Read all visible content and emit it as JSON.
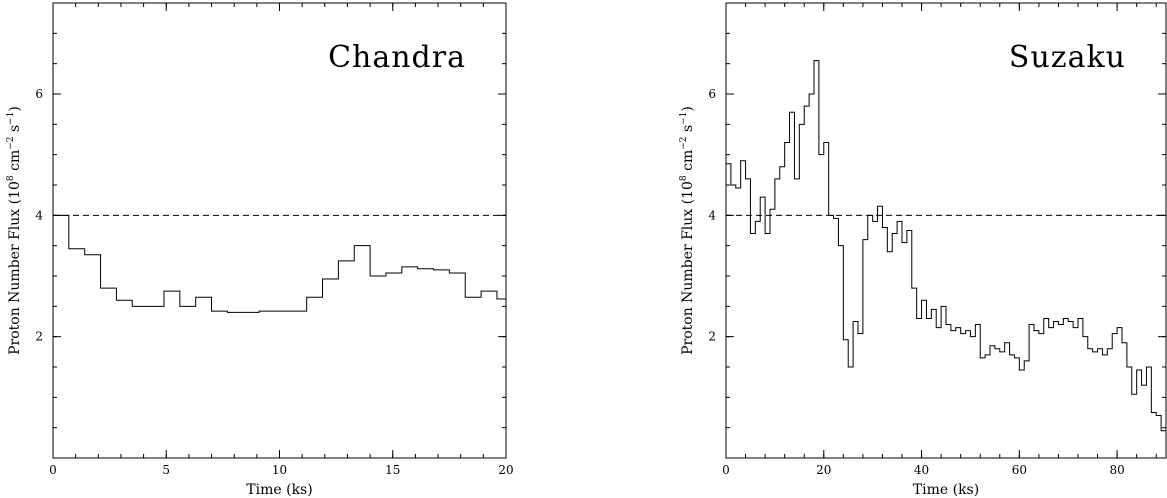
{
  "chart_data": [
    {
      "type": "line",
      "step": true,
      "title": "Chandra",
      "xlabel": "Time (ks)",
      "ylabel": "Proton Number Flux (10",
      "ylabel_exp1": "8",
      "ylabel_mid": " cm",
      "ylabel_exp2": "−2",
      "ylabel_mid2": " s",
      "ylabel_exp3": "−1",
      "ylabel_end": ")",
      "xlim": [
        0,
        20
      ],
      "ylim": [
        0,
        7.5
      ],
      "xticks": [
        0,
        5,
        10,
        15,
        20
      ],
      "xtick_labels": [
        "0",
        "5",
        "10",
        "15",
        "20"
      ],
      "yticks": [
        2,
        4,
        6
      ],
      "ytick_labels": [
        "2",
        "4",
        "6"
      ],
      "x_minor_step": 1,
      "y_minor_step": 0.5,
      "threshold": 4,
      "series": [
        {
          "x": [
            0,
            0.7,
            1.4,
            2.1,
            2.8,
            3.5,
            4.2,
            4.9,
            5.6,
            6.3,
            7.0,
            7.7,
            8.4,
            9.1,
            9.8,
            10.5,
            11.2,
            11.9,
            12.6,
            13.3,
            14.0,
            14.7,
            15.4,
            16.1,
            16.8,
            17.5,
            18.2,
            18.9,
            19.6,
            20
          ],
          "y": [
            4.0,
            3.45,
            3.35,
            2.8,
            2.6,
            2.5,
            2.5,
            2.75,
            2.5,
            2.65,
            2.42,
            2.4,
            2.4,
            2.42,
            2.42,
            2.42,
            2.65,
            2.95,
            3.25,
            3.5,
            3.0,
            3.05,
            3.15,
            3.12,
            3.1,
            3.05,
            2.65,
            2.75,
            2.62,
            2.62
          ]
        }
      ]
    },
    {
      "type": "line",
      "step": true,
      "title": "Suzaku",
      "xlabel": "Time (ks)",
      "ylabel": "Proton Number Flux (10",
      "ylabel_exp1": "8",
      "ylabel_mid": " cm",
      "ylabel_exp2": "−2",
      "ylabel_mid2": " s",
      "ylabel_exp3": "−1",
      "ylabel_end": ")",
      "xlim": [
        0,
        90
      ],
      "ylim": [
        0,
        7.5
      ],
      "xticks": [
        0,
        20,
        40,
        60,
        80
      ],
      "xtick_labels": [
        "0",
        "20",
        "40",
        "60",
        "80"
      ],
      "yticks": [
        2,
        4,
        6
      ],
      "ytick_labels": [
        "2",
        "4",
        "6"
      ],
      "x_minor_step": 4,
      "y_minor_step": 0.5,
      "threshold": 4,
      "series": [
        {
          "x": [
            0,
            1,
            2,
            3,
            4,
            5,
            6,
            7,
            8,
            9,
            10,
            11,
            12,
            13,
            14,
            15,
            16,
            17,
            18,
            19,
            20,
            21,
            22,
            23,
            24,
            25,
            26,
            27,
            28,
            29,
            30,
            31,
            32,
            33,
            34,
            35,
            36,
            37,
            38,
            39,
            40,
            41,
            42,
            43,
            44,
            45,
            46,
            47,
            48,
            49,
            50,
            51,
            52,
            53,
            54,
            55,
            56,
            57,
            58,
            59,
            60,
            61,
            62,
            63,
            64,
            65,
            66,
            67,
            68,
            69,
            70,
            71,
            72,
            73,
            74,
            75,
            76,
            77,
            78,
            79,
            80,
            81,
            82,
            83,
            84,
            85,
            86,
            87,
            88,
            89
          ],
          "y": [
            4.85,
            4.5,
            4.45,
            4.9,
            4.6,
            3.7,
            3.9,
            4.3,
            3.7,
            4.1,
            4.6,
            4.8,
            5.2,
            5.7,
            4.6,
            5.5,
            5.8,
            6.0,
            6.55,
            5.0,
            5.2,
            4.0,
            3.95,
            3.5,
            1.95,
            1.5,
            2.25,
            2.05,
            3.6,
            4.0,
            3.9,
            4.15,
            3.8,
            3.4,
            3.7,
            3.9,
            3.55,
            3.75,
            2.8,
            2.3,
            2.6,
            2.3,
            2.45,
            2.15,
            2.5,
            2.2,
            2.1,
            2.15,
            2.05,
            2.1,
            2.0,
            2.2,
            1.65,
            1.7,
            1.85,
            1.8,
            1.75,
            1.9,
            1.7,
            1.65,
            1.45,
            1.6,
            2.2,
            2.1,
            2.05,
            2.3,
            2.15,
            2.25,
            2.2,
            2.3,
            2.25,
            2.15,
            2.3,
            2.0,
            1.8,
            1.75,
            1.8,
            1.7,
            1.8,
            2.05,
            2.15,
            1.9,
            1.5,
            1.05,
            1.45,
            1.2,
            1.5,
            0.75,
            0.7,
            0.45
          ]
        }
      ]
    }
  ]
}
